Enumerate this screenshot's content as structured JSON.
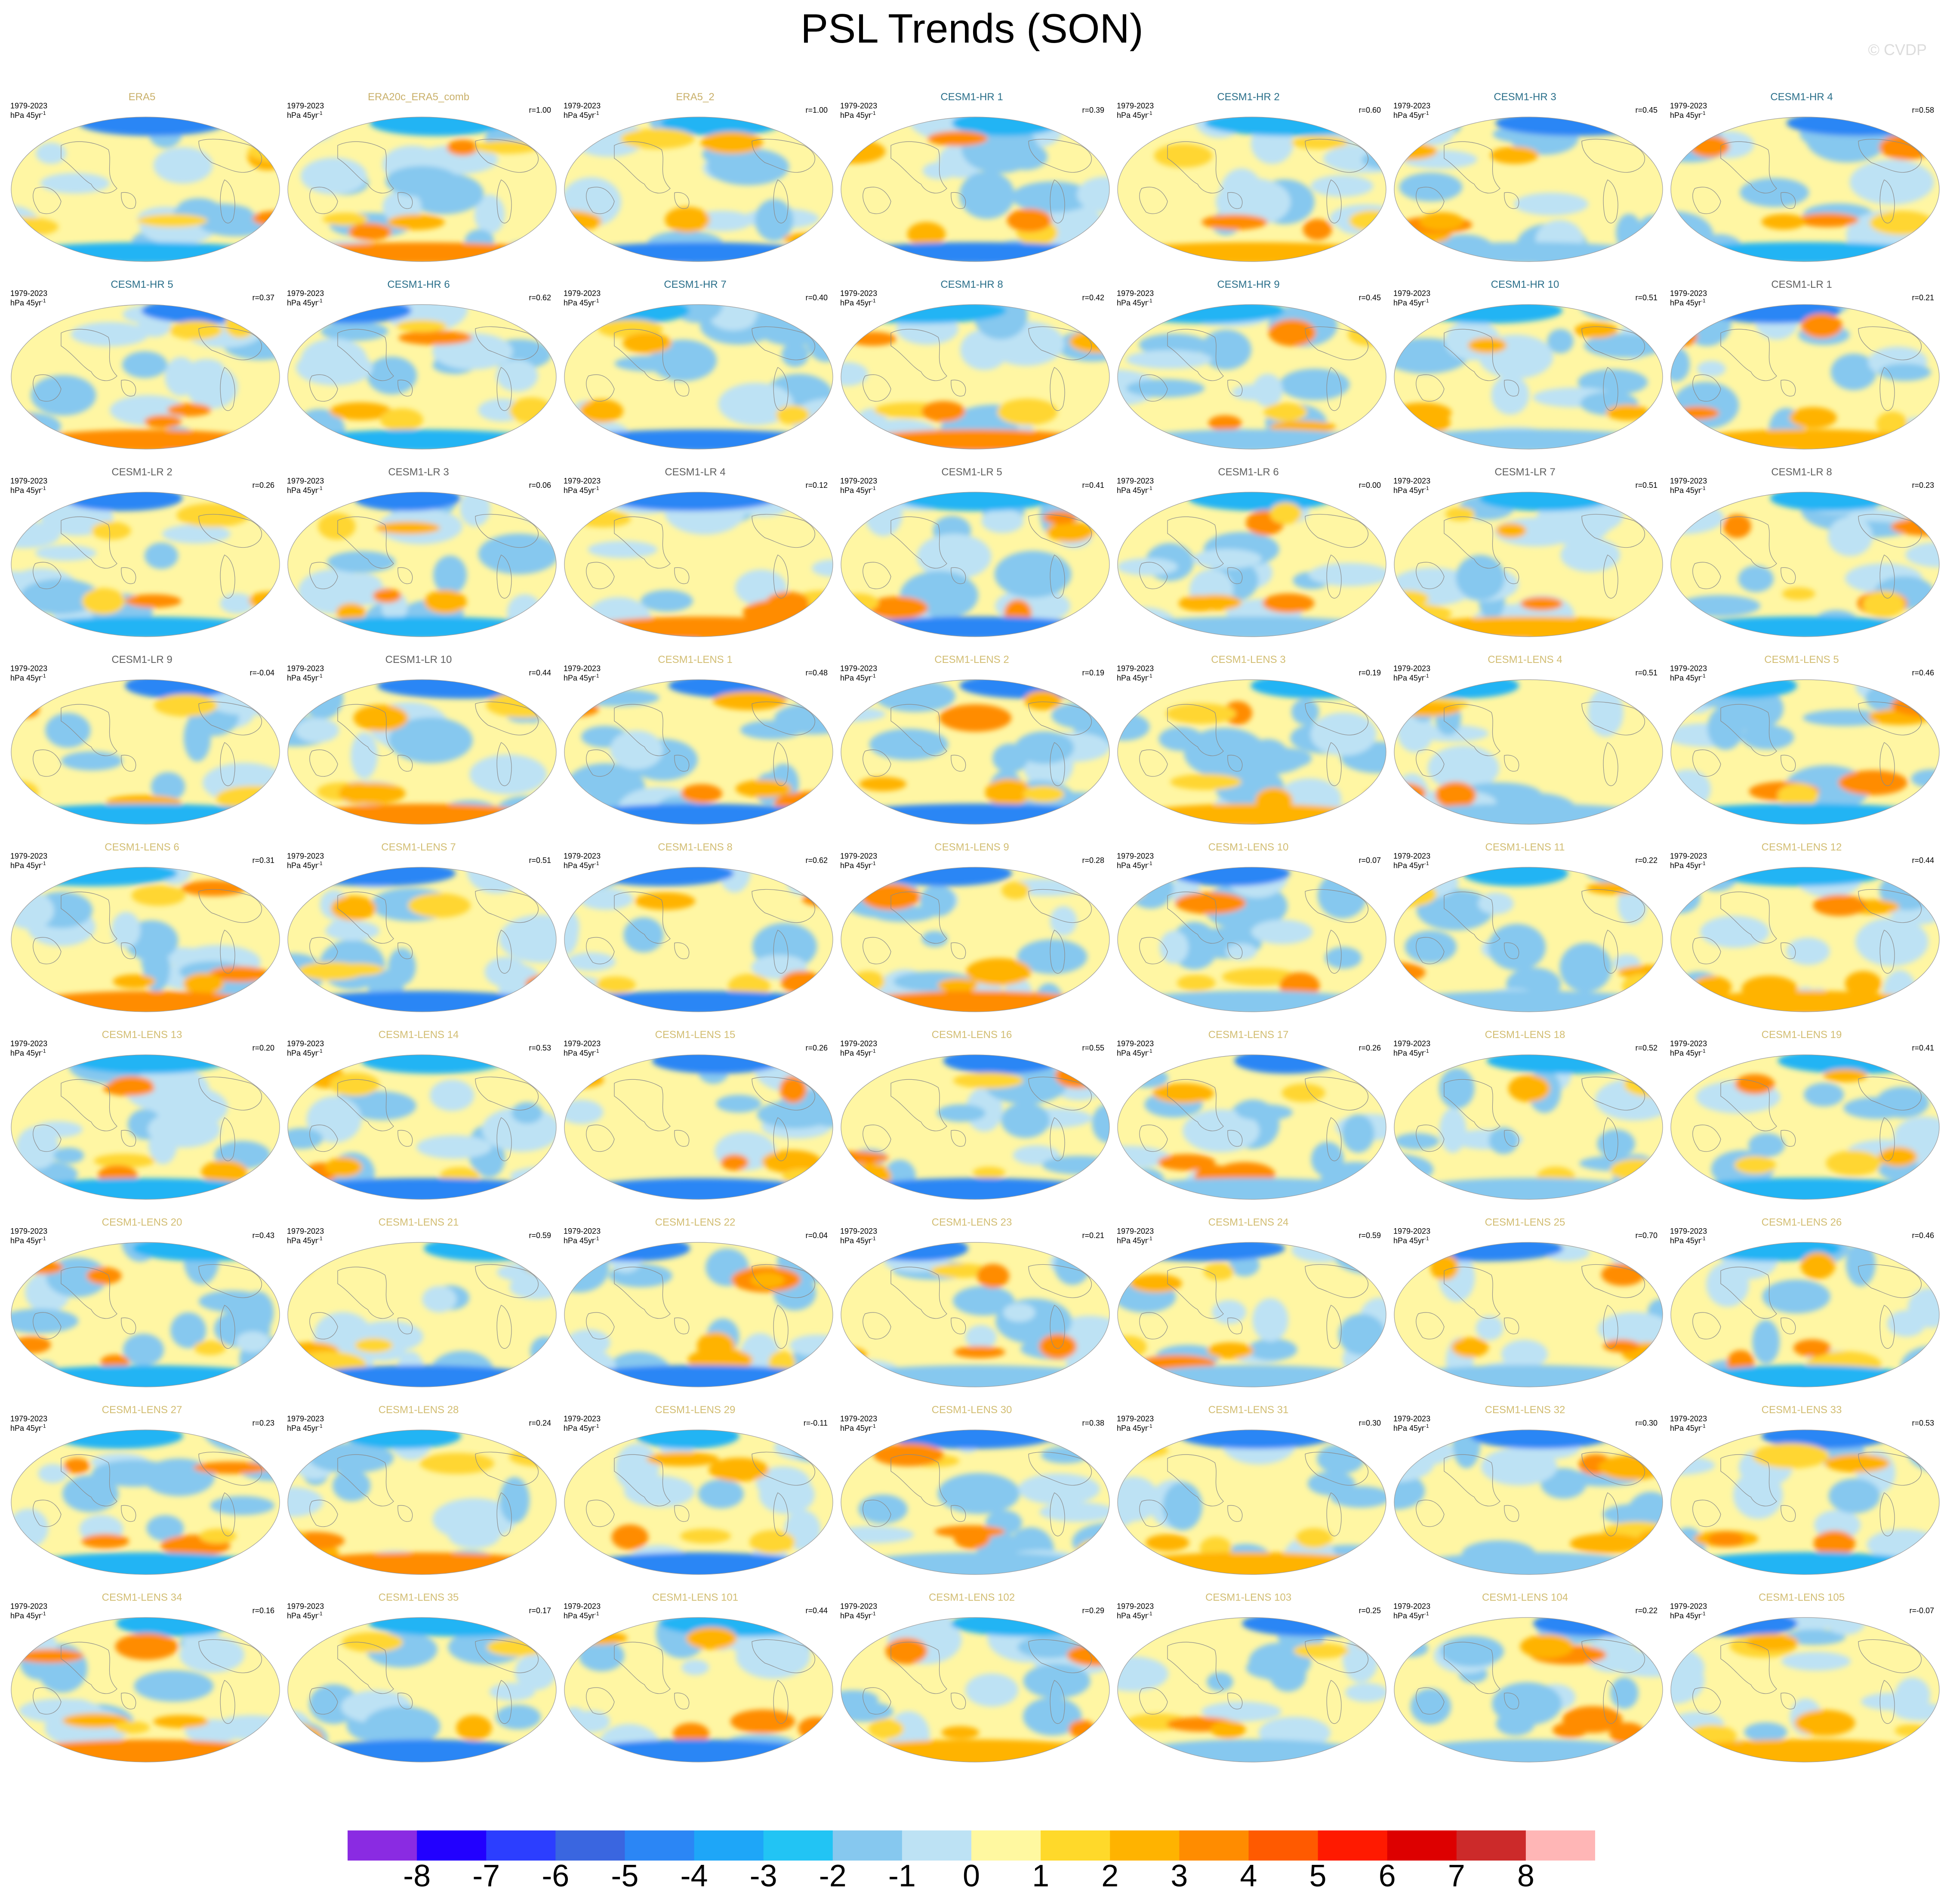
{
  "title": "PSL Trends (SON)",
  "credit": "© CVDP",
  "chart_data": {
    "type": "heatmap",
    "title": "PSL Trends (SON)",
    "period": "1979-2023",
    "units": "hPa 45yr",
    "units_superscript": "-1",
    "panels": [
      {
        "name": "ERA5",
        "r": "",
        "group": "obs"
      },
      {
        "name": "ERA20c_ERA5_comb",
        "r": "r=1.00",
        "group": "obs"
      },
      {
        "name": "ERA5_2",
        "r": "r=1.00",
        "group": "obs"
      },
      {
        "name": "CESM1-HR 1",
        "r": "r=0.39",
        "group": "hr"
      },
      {
        "name": "CESM1-HR 2",
        "r": "r=0.60",
        "group": "hr"
      },
      {
        "name": "CESM1-HR 3",
        "r": "r=0.45",
        "group": "hr"
      },
      {
        "name": "CESM1-HR 4",
        "r": "r=0.58",
        "group": "hr"
      },
      {
        "name": "CESM1-HR 5",
        "r": "r=0.37",
        "group": "hr"
      },
      {
        "name": "CESM1-HR 6",
        "r": "r=0.62",
        "group": "hr"
      },
      {
        "name": "CESM1-HR 7",
        "r": "r=0.40",
        "group": "hr"
      },
      {
        "name": "CESM1-HR 8",
        "r": "r=0.42",
        "group": "hr"
      },
      {
        "name": "CESM1-HR 9",
        "r": "r=0.45",
        "group": "hr"
      },
      {
        "name": "CESM1-HR 10",
        "r": "r=0.51",
        "group": "hr"
      },
      {
        "name": "CESM1-LR 1",
        "r": "r=0.21",
        "group": "lr"
      },
      {
        "name": "CESM1-LR 2",
        "r": "r=0.26",
        "group": "lr"
      },
      {
        "name": "CESM1-LR 3",
        "r": "r=0.06",
        "group": "lr"
      },
      {
        "name": "CESM1-LR 4",
        "r": "r=0.12",
        "group": "lr"
      },
      {
        "name": "CESM1-LR 5",
        "r": "r=0.41",
        "group": "lr"
      },
      {
        "name": "CESM1-LR 6",
        "r": "r=0.00",
        "group": "lr"
      },
      {
        "name": "CESM1-LR 7",
        "r": "r=0.51",
        "group": "lr"
      },
      {
        "name": "CESM1-LR 8",
        "r": "r=0.23",
        "group": "lr"
      },
      {
        "name": "CESM1-LR 9",
        "r": "r=-0.04",
        "group": "lr"
      },
      {
        "name": "CESM1-LR 10",
        "r": "r=0.44",
        "group": "lr"
      },
      {
        "name": "CESM1-LENS 1",
        "r": "r=0.48",
        "group": "lens"
      },
      {
        "name": "CESM1-LENS 2",
        "r": "r=0.19",
        "group": "lens"
      },
      {
        "name": "CESM1-LENS 3",
        "r": "r=0.19",
        "group": "lens"
      },
      {
        "name": "CESM1-LENS 4",
        "r": "r=0.51",
        "group": "lens"
      },
      {
        "name": "CESM1-LENS 5",
        "r": "r=0.46",
        "group": "lens"
      },
      {
        "name": "CESM1-LENS 6",
        "r": "r=0.31",
        "group": "lens"
      },
      {
        "name": "CESM1-LENS 7",
        "r": "r=0.51",
        "group": "lens"
      },
      {
        "name": "CESM1-LENS 8",
        "r": "r=0.62",
        "group": "lens"
      },
      {
        "name": "CESM1-LENS 9",
        "r": "r=0.28",
        "group": "lens"
      },
      {
        "name": "CESM1-LENS 10",
        "r": "r=0.07",
        "group": "lens"
      },
      {
        "name": "CESM1-LENS 11",
        "r": "r=0.22",
        "group": "lens"
      },
      {
        "name": "CESM1-LENS 12",
        "r": "r=0.44",
        "group": "lens"
      },
      {
        "name": "CESM1-LENS 13",
        "r": "r=0.20",
        "group": "lens"
      },
      {
        "name": "CESM1-LENS 14",
        "r": "r=0.53",
        "group": "lens"
      },
      {
        "name": "CESM1-LENS 15",
        "r": "r=0.26",
        "group": "lens"
      },
      {
        "name": "CESM1-LENS 16",
        "r": "r=0.55",
        "group": "lens"
      },
      {
        "name": "CESM1-LENS 17",
        "r": "r=0.26",
        "group": "lens"
      },
      {
        "name": "CESM1-LENS 18",
        "r": "r=0.52",
        "group": "lens"
      },
      {
        "name": "CESM1-LENS 19",
        "r": "r=0.41",
        "group": "lens"
      },
      {
        "name": "CESM1-LENS 20",
        "r": "r=0.43",
        "group": "lens"
      },
      {
        "name": "CESM1-LENS 21",
        "r": "r=0.59",
        "group": "lens"
      },
      {
        "name": "CESM1-LENS 22",
        "r": "r=0.04",
        "group": "lens"
      },
      {
        "name": "CESM1-LENS 23",
        "r": "r=0.21",
        "group": "lens"
      },
      {
        "name": "CESM1-LENS 24",
        "r": "r=0.59",
        "group": "lens"
      },
      {
        "name": "CESM1-LENS 25",
        "r": "r=0.70",
        "group": "lens"
      },
      {
        "name": "CESM1-LENS 26",
        "r": "r=0.46",
        "group": "lens"
      },
      {
        "name": "CESM1-LENS 27",
        "r": "r=0.23",
        "group": "lens"
      },
      {
        "name": "CESM1-LENS 28",
        "r": "r=0.24",
        "group": "lens"
      },
      {
        "name": "CESM1-LENS 29",
        "r": "r=-0.11",
        "group": "lens"
      },
      {
        "name": "CESM1-LENS 30",
        "r": "r=0.38",
        "group": "lens"
      },
      {
        "name": "CESM1-LENS 31",
        "r": "r=0.30",
        "group": "lens"
      },
      {
        "name": "CESM1-LENS 32",
        "r": "r=0.30",
        "group": "lens"
      },
      {
        "name": "CESM1-LENS 33",
        "r": "r=0.53",
        "group": "lens"
      },
      {
        "name": "CESM1-LENS 34",
        "r": "r=0.16",
        "group": "lens"
      },
      {
        "name": "CESM1-LENS 35",
        "r": "r=0.17",
        "group": "lens"
      },
      {
        "name": "CESM1-LENS 101",
        "r": "r=0.44",
        "group": "lens"
      },
      {
        "name": "CESM1-LENS 102",
        "r": "r=0.29",
        "group": "lens"
      },
      {
        "name": "CESM1-LENS 103",
        "r": "r=0.25",
        "group": "lens"
      },
      {
        "name": "CESM1-LENS 104",
        "r": "r=0.22",
        "group": "lens"
      },
      {
        "name": "CESM1-LENS 105",
        "r": "r=-0.07",
        "group": "lens"
      }
    ],
    "colorbar": {
      "labels": [
        "-8",
        "-7",
        "-6",
        "-5",
        "-4",
        "-3",
        "-2",
        "-1",
        "0",
        "1",
        "2",
        "3",
        "4",
        "5",
        "6",
        "7",
        "8"
      ],
      "colors": [
        "#8a2be2",
        "#2200ff",
        "#2c3eff",
        "#3a66e0",
        "#2b86f5",
        "#1ea6f8",
        "#22c4f4",
        "#86c8ef",
        "#bde2f4",
        "#fff8a0",
        "#ffd92a",
        "#ffb300",
        "#ff8c00",
        "#ff5a00",
        "#ff1a00",
        "#dd0000",
        "#cc2a2a",
        "#ffb6b6"
      ]
    },
    "title_colors": {
      "obs": "#c9b06a",
      "hr": "#2a6f8a",
      "lr": "#606060",
      "lens": "#d2bd72"
    }
  }
}
